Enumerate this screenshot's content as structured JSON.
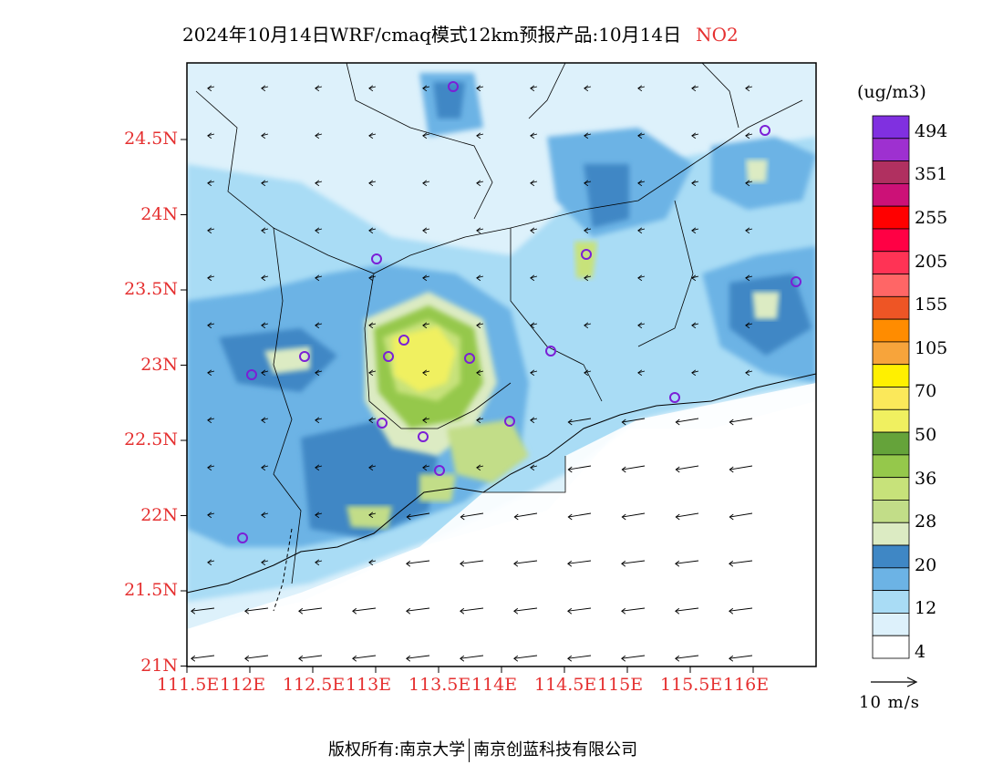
{
  "title": {
    "main": "2024年10月14日WRF/cmaq模式12km预报产品:10月14日",
    "pollutant": "NO2"
  },
  "colorbar": {
    "unit": "(ug/m3)",
    "colors": [
      "#ffffff",
      "#ddf1fb",
      "#a9dcf5",
      "#6cb3e5",
      "#3f87c5",
      "#dcebc3",
      "#c2dd88",
      "#c7e27a",
      "#95c84b",
      "#65a33a",
      "#f0f060",
      "#fbe85a",
      "#fff000",
      "#f7a43b",
      "#ff8c00",
      "#ee5525",
      "#ff6666",
      "#ff3355",
      "#ff0044",
      "#ff0000",
      "#cc1177",
      "#b03060",
      "#9e30d0",
      "#8030e0"
    ],
    "labels": [
      {
        "text": "4",
        "index": 1
      },
      {
        "text": "12",
        "index": 3
      },
      {
        "text": "20",
        "index": 5
      },
      {
        "text": "28",
        "index": 7
      },
      {
        "text": "36",
        "index": 9
      },
      {
        "text": "50",
        "index": 11
      },
      {
        "text": "70",
        "index": 13
      },
      {
        "text": "105",
        "index": 15
      },
      {
        "text": "155",
        "index": 17
      },
      {
        "text": "205",
        "index": 19
      },
      {
        "text": "255",
        "index": 21
      },
      {
        "text": "351",
        "index": 23
      },
      {
        "text": "494",
        "index": 25
      }
    ]
  },
  "wind_scale_label": "10 m/s",
  "axes": {
    "lat_labels": [
      "24.5N",
      "24N",
      "23.5N",
      "23N",
      "22.5N",
      "22N",
      "21.5N",
      "21N"
    ],
    "lon_labels": [
      "111.5E",
      "112E",
      "112.5E",
      "113E",
      "113.5E",
      "114E",
      "114.5E",
      "115E",
      "115.5E",
      "116E"
    ]
  },
  "footer": {
    "left": "版权所有:南京大学",
    "right": "南京创蓝科技有限公司"
  }
}
